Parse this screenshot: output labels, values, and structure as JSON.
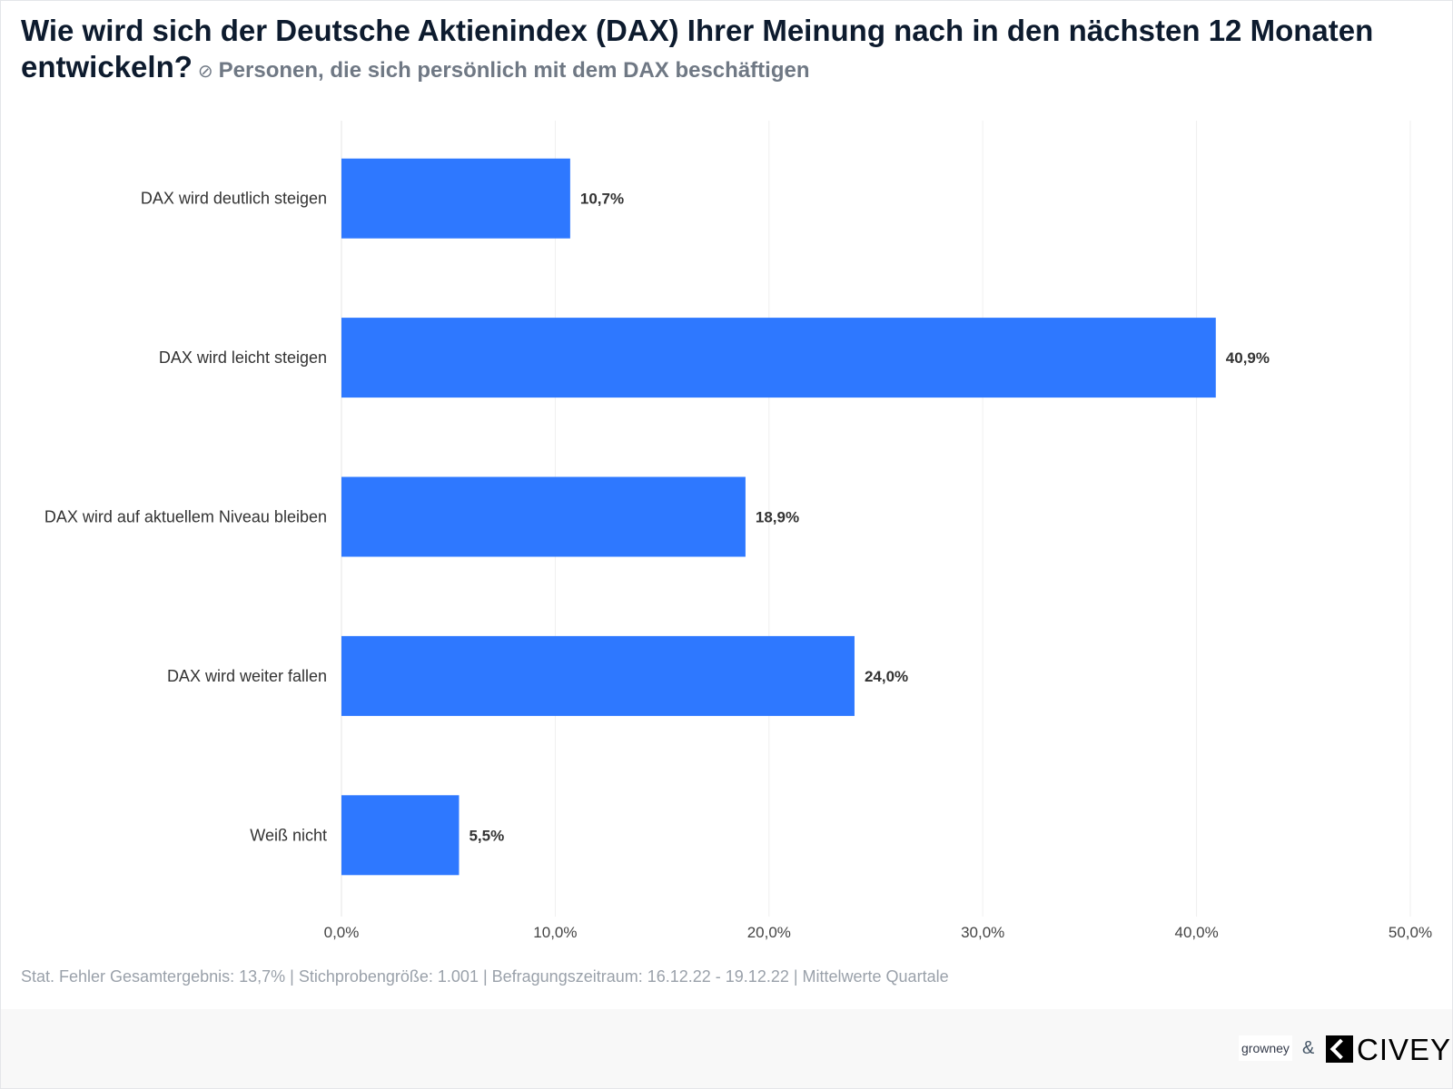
{
  "title": "Wie wird sich der Deutsche Aktienindex (DAX) Ihrer Meinung nach in den nächsten 12 Monaten entwickeln?",
  "subtitle": "Personen, die sich persönlich mit dem DAX beschäftigen",
  "subtitle_icon": "no-sign-icon",
  "note": "Stat. Fehler Gesamtergebnis: 13,7% | Stichprobengröße: 1.001 | Befragungszeitraum: 16.12.22 - 19.12.22 | Mittelwerte Quartale",
  "logos": {
    "grow": "growney",
    "amp": "&",
    "civey": "CIVEY"
  },
  "chart_data": {
    "type": "bar",
    "orientation": "horizontal",
    "categories": [
      "DAX wird deutlich steigen",
      "DAX wird leicht steigen",
      "DAX wird auf aktuellem Niveau bleiben",
      "DAX wird weiter fallen",
      "Weiß nicht"
    ],
    "values": [
      10.7,
      40.9,
      18.9,
      24.0,
      5.5
    ],
    "data_labels": [
      "10,7%",
      "40,9%",
      "18,9%",
      "24,0%",
      "5,5%"
    ],
    "xlim": [
      0,
      50
    ],
    "xticks": [
      "0,0%",
      "10,0%",
      "20,0%",
      "30,0%",
      "40,0%",
      "50,0%"
    ],
    "grid": true,
    "bar_color": "#2e78ff"
  }
}
